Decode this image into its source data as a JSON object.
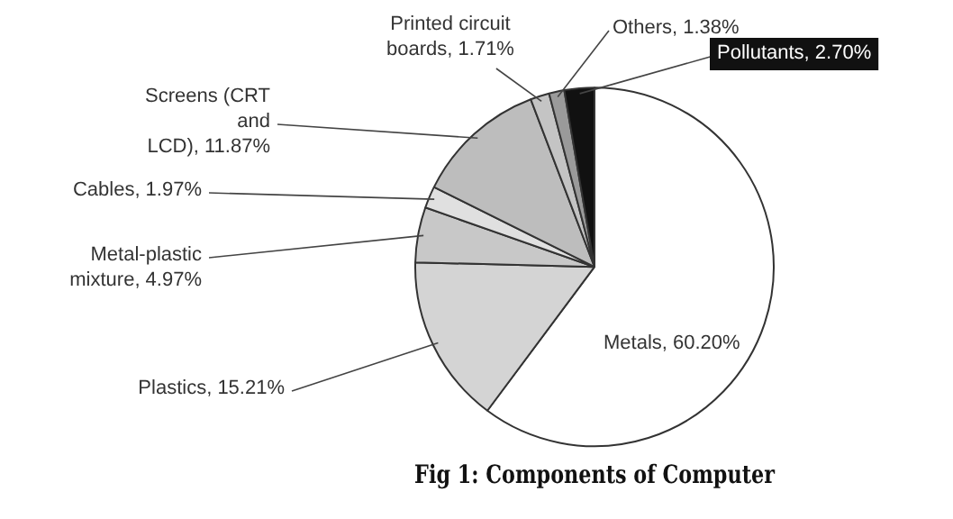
{
  "chart_data": {
    "type": "pie",
    "title": "Fig 1: Components of Computer",
    "categories": [
      "Metals",
      "Plastics",
      "Metal-plastic mixture",
      "Cables",
      "Screens (CRT and LCD)",
      "Printed circuit boards",
      "Others",
      "Pollutants"
    ],
    "values": [
      60.2,
      15.21,
      4.97,
      1.97,
      11.87,
      1.71,
      1.38,
      2.7
    ],
    "value_labels": [
      "60.20%",
      "15.21%",
      "4.97%",
      "1.97%",
      "11.87%",
      "1.71%",
      "1.38%",
      "2.70%"
    ],
    "colors": [
      "#ffffff",
      "#d4d4d4",
      "#c8c8c8",
      "#e0e0e0",
      "#bdbdbd",
      "#c4c4c4",
      "#9a9a9a",
      "#111111"
    ]
  }
}
